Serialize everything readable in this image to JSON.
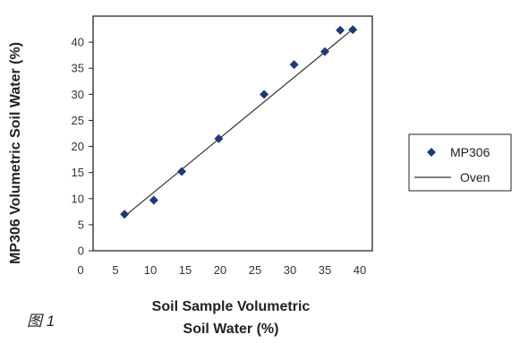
{
  "chart_data": {
    "type": "scatter",
    "xlabel": "Soil Sample Volumetric Soil Water (%)",
    "xlabel_lines": [
      "Soil Sample Volumetric",
      "Soil Water (%)"
    ],
    "ylabel": "MP306 Volumetric Soil Water (%)",
    "xlim": [
      0,
      40
    ],
    "ylim": [
      0,
      45
    ],
    "x_ticks": [
      0,
      5,
      10,
      15,
      20,
      25,
      30,
      35,
      40
    ],
    "y_ticks": [
      0,
      5,
      10,
      15,
      20,
      25,
      30,
      35,
      40
    ],
    "grid": false,
    "legend_position": "right",
    "series": [
      {
        "name": "MP306",
        "kind": "scatter",
        "marker": "diamond",
        "color": "#1f3b73",
        "points": [
          {
            "x": 4.5,
            "y": 7.0
          },
          {
            "x": 8.7,
            "y": 9.7
          },
          {
            "x": 12.7,
            "y": 15.2
          },
          {
            "x": 18.0,
            "y": 21.5
          },
          {
            "x": 24.5,
            "y": 30.0
          },
          {
            "x": 28.8,
            "y": 35.7
          },
          {
            "x": 33.2,
            "y": 38.2
          },
          {
            "x": 35.4,
            "y": 42.3
          },
          {
            "x": 37.2,
            "y": 42.4
          }
        ]
      },
      {
        "name": "Oven",
        "kind": "line",
        "color": "#333333",
        "points": [
          {
            "x": 4.5,
            "y": 6.6
          },
          {
            "x": 37.3,
            "y": 42.6
          }
        ]
      }
    ]
  },
  "figure_label": "图 1"
}
